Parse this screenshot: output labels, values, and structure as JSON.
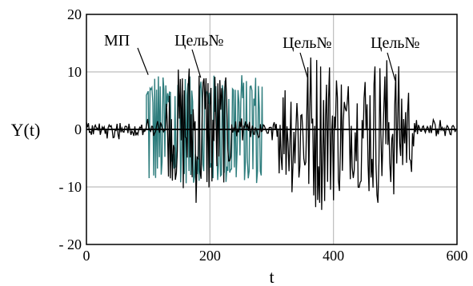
{
  "chart_data": {
    "type": "line",
    "xlabel": "t",
    "ylabel": "Y(t)",
    "xlim": [
      0,
      600
    ],
    "ylim": [
      -20,
      20
    ],
    "x_ticks": [
      0,
      200,
      400,
      600
    ],
    "y_ticks": [
      20,
      10,
      0,
      -10,
      -20
    ],
    "x_tick_labels": [
      "0",
      "200",
      "400",
      "600"
    ],
    "y_tick_labels": [
      "20",
      "10",
      "0",
      "- 10",
      "- 20"
    ],
    "grid": true,
    "colors": {
      "noise": "#2e7d7d",
      "signal": "#000000"
    },
    "series": [
      {
        "name": "МП",
        "color": "#2e7d7d",
        "active_range": [
          97,
          285
        ],
        "amplitude": 10,
        "description_points": [
          [
            0,
            0
          ],
          [
            97,
            0
          ],
          [
            100,
            9.5
          ],
          [
            104,
            -9
          ],
          [
            110,
            9.8
          ],
          [
            116,
            -9.5
          ],
          [
            122,
            10
          ],
          [
            128,
            -8.5
          ],
          [
            134,
            9.6
          ],
          [
            140,
            -9.8
          ],
          [
            146,
            10
          ],
          [
            152,
            -9.2
          ],
          [
            158,
            9.7
          ],
          [
            164,
            -9.6
          ],
          [
            170,
            10
          ],
          [
            176,
            -9.9
          ],
          [
            182,
            9.4
          ],
          [
            188,
            -9.7
          ],
          [
            194,
            10
          ],
          [
            200,
            -9.5
          ],
          [
            206,
            9.8
          ],
          [
            212,
            -9.8
          ],
          [
            218,
            10
          ],
          [
            224,
            -9.4
          ],
          [
            230,
            9.7
          ],
          [
            236,
            -9.6
          ],
          [
            242,
            9.9
          ],
          [
            248,
            -9.8
          ],
          [
            254,
            10
          ],
          [
            260,
            -9.5
          ],
          [
            266,
            9.8
          ],
          [
            272,
            -9.7
          ],
          [
            278,
            10
          ],
          [
            283,
            -9.3
          ],
          [
            285,
            0
          ],
          [
            600,
            0
          ]
        ]
      },
      {
        "name": "Цель№",
        "color": "#000000",
        "bursts": [
          {
            "range": [
              128,
              235
            ],
            "amplitude": 13.5
          },
          {
            "range": [
              310,
              435
            ],
            "amplitude": 14.5
          },
          {
            "range": [
              425,
              530
            ],
            "amplitude": 13.5
          }
        ],
        "noise_amplitude": 2
      }
    ],
    "annotations": [
      {
        "text": "МП",
        "target": [
          100,
          9.5
        ]
      },
      {
        "text": "Цель№",
        "target": [
          185,
          9
        ]
      },
      {
        "text": "Цель№",
        "target": [
          358,
          9
        ]
      },
      {
        "text": "Цель№",
        "target": [
          500,
          8.5
        ]
      }
    ]
  }
}
